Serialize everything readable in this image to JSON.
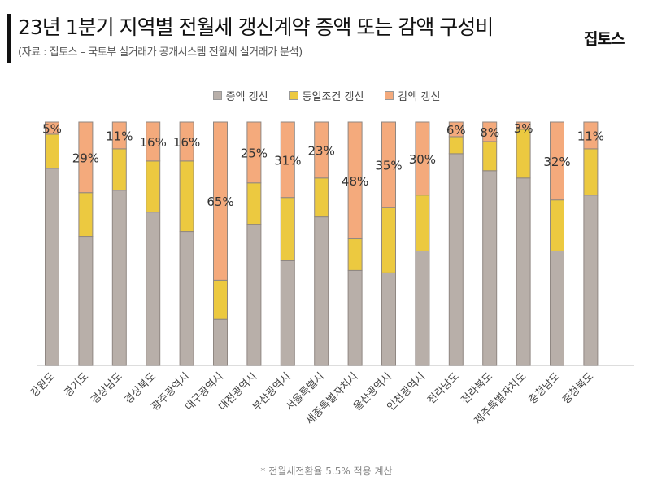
{
  "header": {
    "title": "23년 1분기 지역별 전월세 갱신계약 증액 또는 감액 구성비",
    "subtitle": "(자료 : 집토스 – 국토부 실거래가 공개시스템 전월세 실거래가 분석)",
    "logo": "집토스"
  },
  "footnote": "* 전월세전환율 5.5% 적용 계산",
  "chart_data": {
    "type": "bar",
    "stacked": true,
    "normalized_percent": true,
    "title": "23년 1분기 지역별 전월세 갱신계약 증액 또는 감액 구성비",
    "legend_position": "top",
    "grid": false,
    "ylim": [
      0,
      100
    ],
    "categories": [
      "강원도",
      "경기도",
      "경상남도",
      "경상북도",
      "광주광역시",
      "대구광역시",
      "대전광역시",
      "부산광역시",
      "서울특별시",
      "세종특별자치시",
      "울산광역시",
      "인천광역시",
      "전라남도",
      "전라북도",
      "제주특별자치도",
      "충청남도",
      "충청북도"
    ],
    "series": [
      {
        "name": "증액 갱신",
        "color": "#b8afa9",
        "values": [
          81,
          53,
          72,
          63,
          55,
          19,
          58,
          43,
          61,
          39,
          38,
          47,
          87,
          80,
          77,
          47,
          70
        ]
      },
      {
        "name": "동일조건 갱신",
        "color": "#ecc940",
        "values": [
          14,
          18,
          17,
          21,
          29,
          16,
          17,
          26,
          16,
          13,
          27,
          23,
          7,
          12,
          20,
          21,
          19
        ]
      },
      {
        "name": "감액 갱신",
        "color": "#f4aa7c",
        "values": [
          5,
          29,
          11,
          16,
          16,
          65,
          25,
          31,
          23,
          48,
          35,
          30,
          6,
          8,
          3,
          32,
          11
        ],
        "labels": [
          "5%",
          "29%",
          "11%",
          "16%",
          "16%",
          "65%",
          "25%",
          "31%",
          "23%",
          "48%",
          "35%",
          "30%",
          "6%",
          "8%",
          "3%",
          "32%",
          "11%"
        ]
      }
    ]
  }
}
